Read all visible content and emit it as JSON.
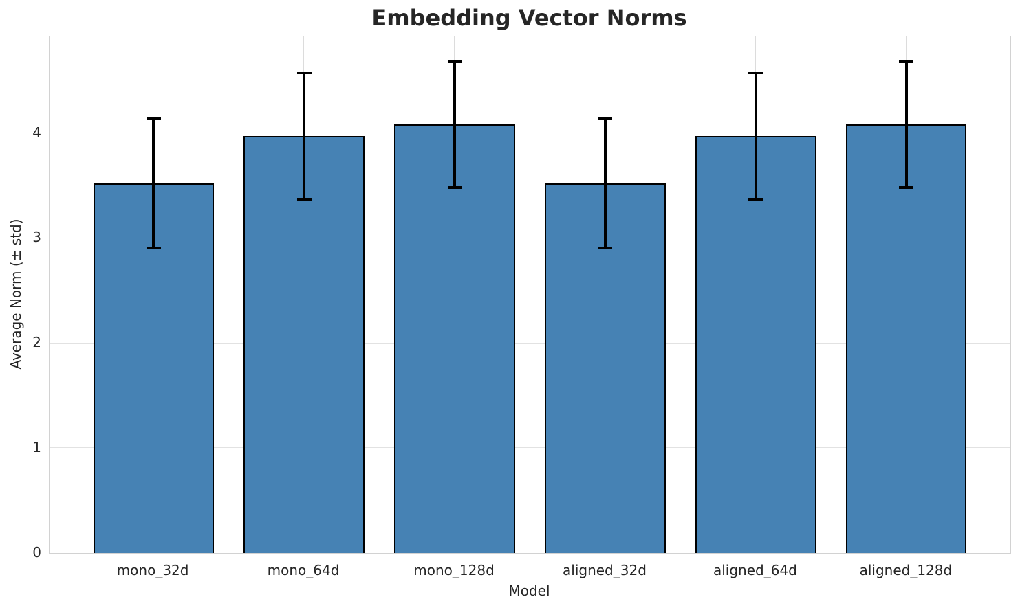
{
  "chart_data": {
    "type": "bar",
    "title": "Embedding Vector Norms",
    "xlabel": "Model",
    "ylabel": "Average Norm (± std)",
    "categories": [
      "mono_32d",
      "mono_64d",
      "mono_128d",
      "aligned_32d",
      "aligned_64d",
      "aligned_128d"
    ],
    "values": [
      3.52,
      3.97,
      4.08,
      3.52,
      3.97,
      4.08
    ],
    "errors": [
      0.62,
      0.6,
      0.6,
      0.62,
      0.6,
      0.6
    ],
    "yticks": [
      0,
      1,
      2,
      3,
      4
    ],
    "ylim": [
      0,
      4.92
    ],
    "grid": true,
    "legend": "none",
    "bar_color": "#4682b4",
    "bar_edge_color": "#000000",
    "error_color": "#000000",
    "grid_color": "#e2e2e2",
    "spine_color": "#d2d2d2",
    "text_color": "#262626",
    "background_color": "#ffffff"
  }
}
